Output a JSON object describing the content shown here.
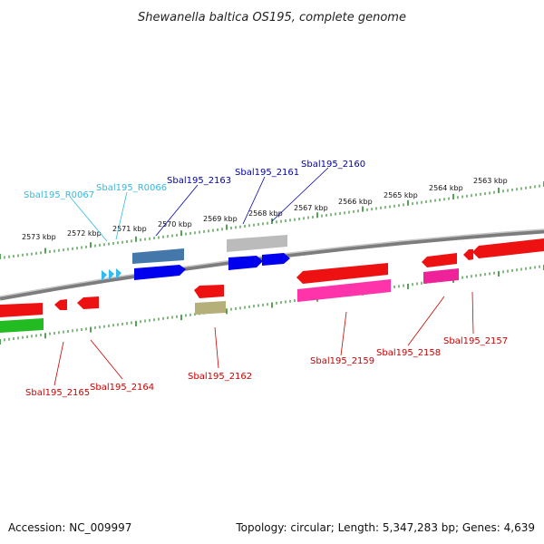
{
  "title": "Shewanella baltica OS195, complete genome",
  "footer": {
    "accession": "Accession: NC_009997",
    "summary": "Topology: circular; Length: 5,347,283 bp; Genes: 4,639"
  },
  "colors": {
    "backbone": "#888888",
    "tick": "#2e8b2e",
    "label_forward": "#0000aa",
    "label_reverse": "#cc0000",
    "label_rna": "#33bbdd"
  },
  "scale_labels": [
    "2573 kbp",
    "2572 kbp",
    "2571 kbp",
    "2570 kbp",
    "2569 kbp",
    "2568 kbp",
    "2567 kbp",
    "2566 kbp",
    "2565 kbp",
    "2564 kbp",
    "2563 kbp"
  ],
  "genes": [
    {
      "id": "g2165",
      "label": "Sbal195_2165",
      "strand": "reverse",
      "color": "#ff2222"
    },
    {
      "id": "g2164",
      "label": "Sbal195_2164",
      "strand": "reverse",
      "color": "#ff2222"
    },
    {
      "id": "gR0067",
      "label": "Sbal195_R0067",
      "strand": "rna",
      "color": "#33bbdd"
    },
    {
      "id": "gR0066",
      "label": "Sbal195_R0066",
      "strand": "rna",
      "color": "#33bbdd"
    },
    {
      "id": "g2163",
      "label": "Sbal195_2163",
      "strand": "forward",
      "color": "#0000ee"
    },
    {
      "id": "g2162",
      "label": "Sbal195_2162",
      "strand": "reverse",
      "color": "#ff2222"
    },
    {
      "id": "g2161",
      "label": "Sbal195_2161",
      "strand": "forward",
      "color": "#0000ee"
    },
    {
      "id": "g2160",
      "label": "Sbal195_2160",
      "strand": "forward",
      "color": "#0000ee"
    },
    {
      "id": "g2159",
      "label": "Sbal195_2159",
      "strand": "reverse",
      "color": "#ff2222"
    },
    {
      "id": "g2158",
      "label": "Sbal195_2158",
      "strand": "reverse",
      "color": "#ff2222"
    },
    {
      "id": "g2157",
      "label": "Sbal195_2157",
      "strand": "reverse",
      "color": "#ff2222"
    }
  ]
}
